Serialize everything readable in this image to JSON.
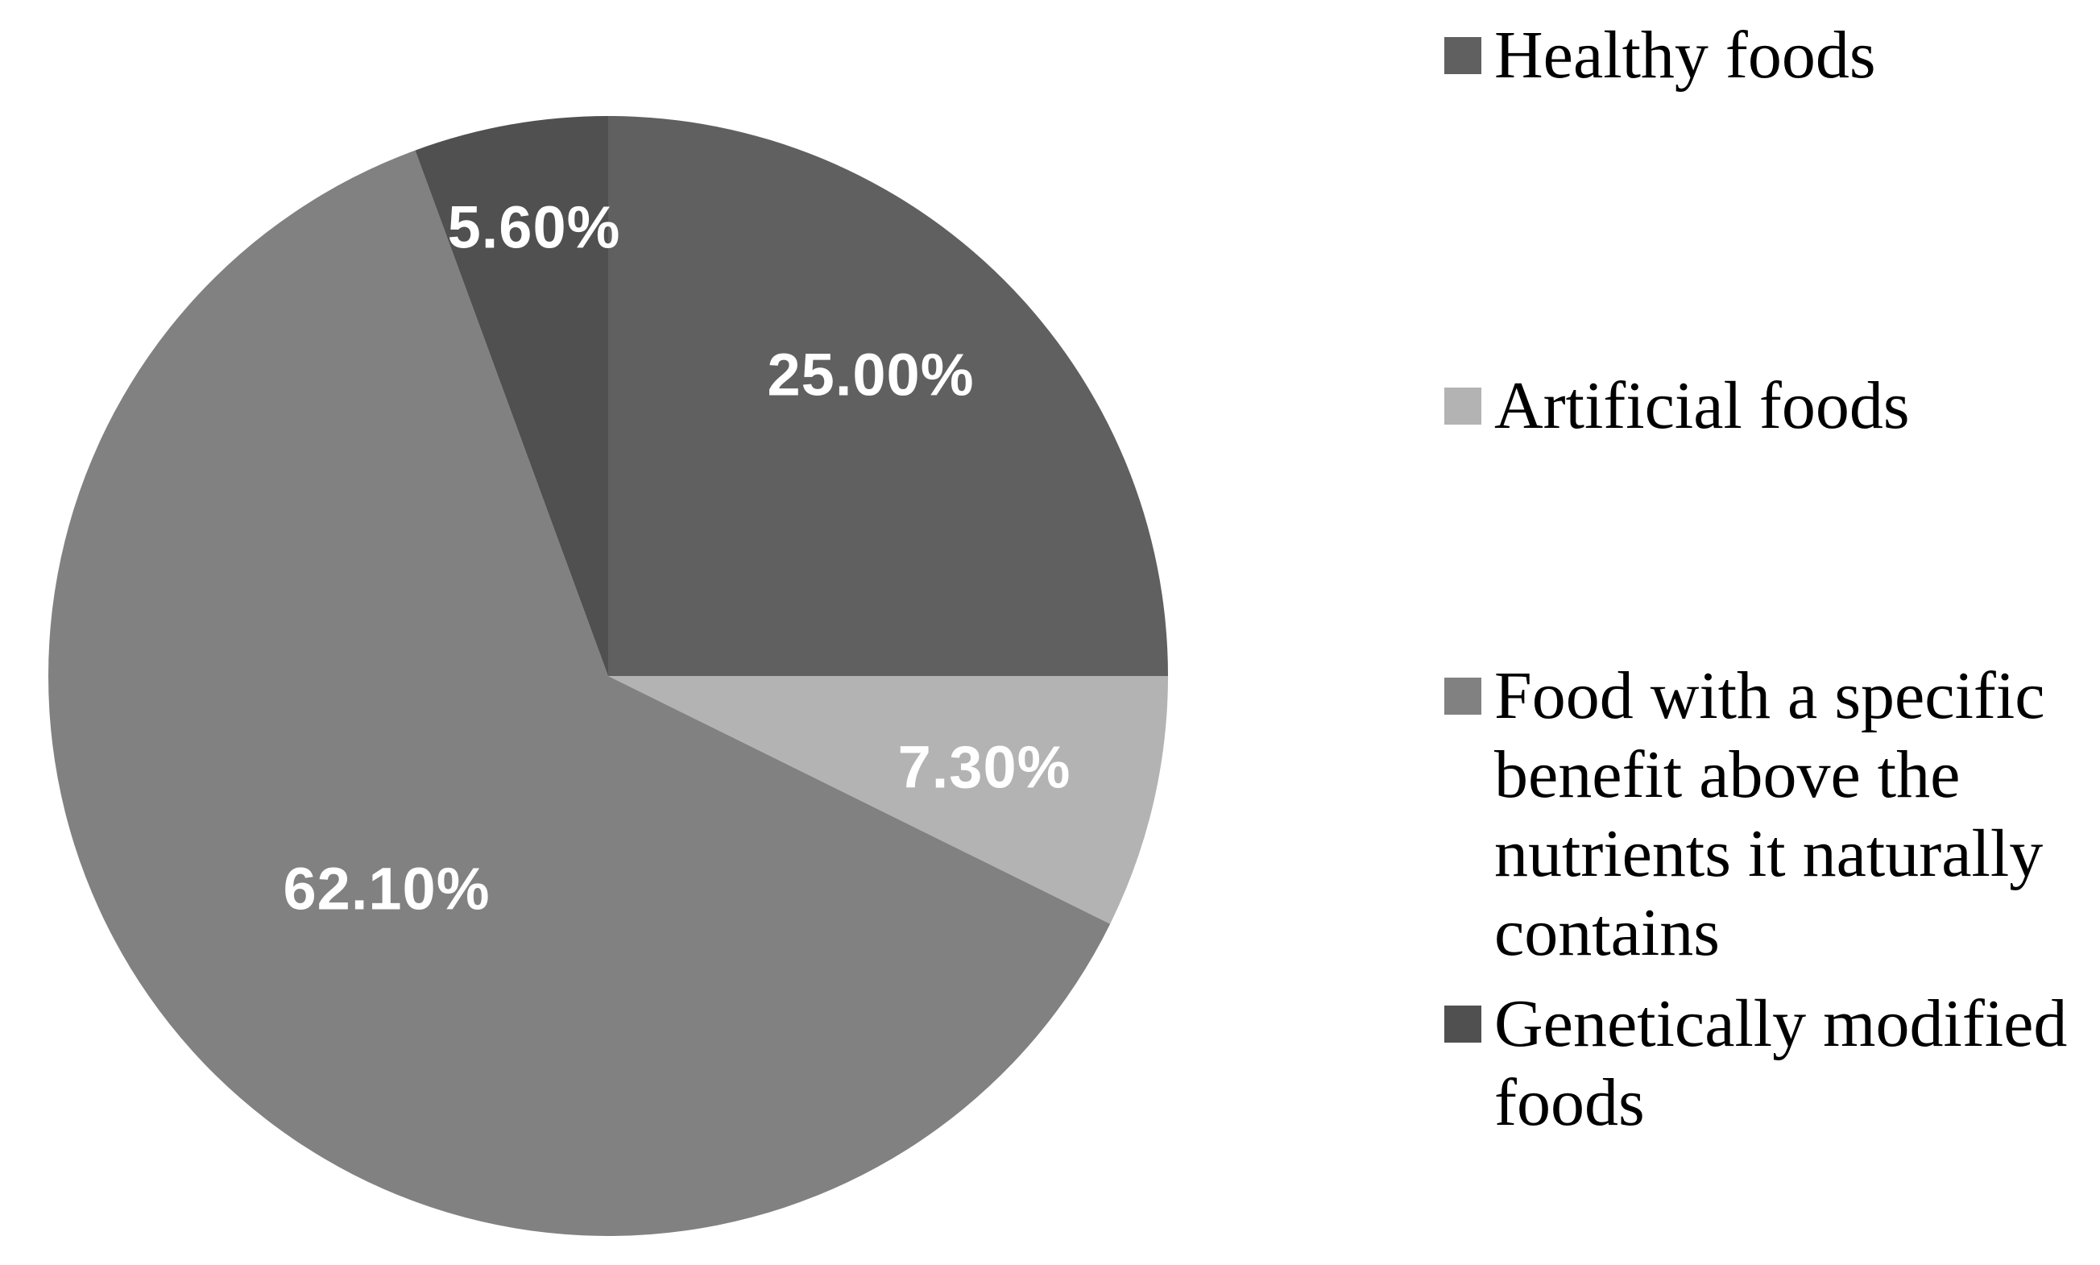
{
  "figure": {
    "background_color": "#ffffff",
    "value_label_color": "#ffffff",
    "legend_text_color": "#000000"
  },
  "chart_data": {
    "type": "pie",
    "title": "",
    "direction": "clockwise",
    "start_angle_deg": 0,
    "legend_position": "right",
    "slices": [
      {
        "label": "Healthy foods",
        "value": 25.0,
        "display": "25.00%",
        "color": "#606060"
      },
      {
        "label": "Artificial foods",
        "value": 7.3,
        "display": "7.30%",
        "color": "#b3b3b3"
      },
      {
        "label": "Food with a specific benefit above the nutrients it naturally contains",
        "value": 62.1,
        "display": "62.10%",
        "color": "#818181"
      },
      {
        "label": "Genetically modified foods",
        "value": 5.6,
        "display": "5.60%",
        "color": "#505050"
      }
    ]
  },
  "legend": {
    "items": [
      {
        "label": "Healthy foods",
        "lines": [
          "Healthy foods"
        ]
      },
      {
        "label": "Artificial foods",
        "lines": [
          "Artificial foods"
        ]
      },
      {
        "label": "Food with a specific benefit above the nutrients it naturally contains",
        "lines": [
          "Food with a specific",
          "benefit above the",
          "nutrients it naturally",
          "contains"
        ]
      },
      {
        "label": "Genetically modified foods",
        "lines": [
          "Genetically modified",
          "foods"
        ]
      }
    ]
  }
}
